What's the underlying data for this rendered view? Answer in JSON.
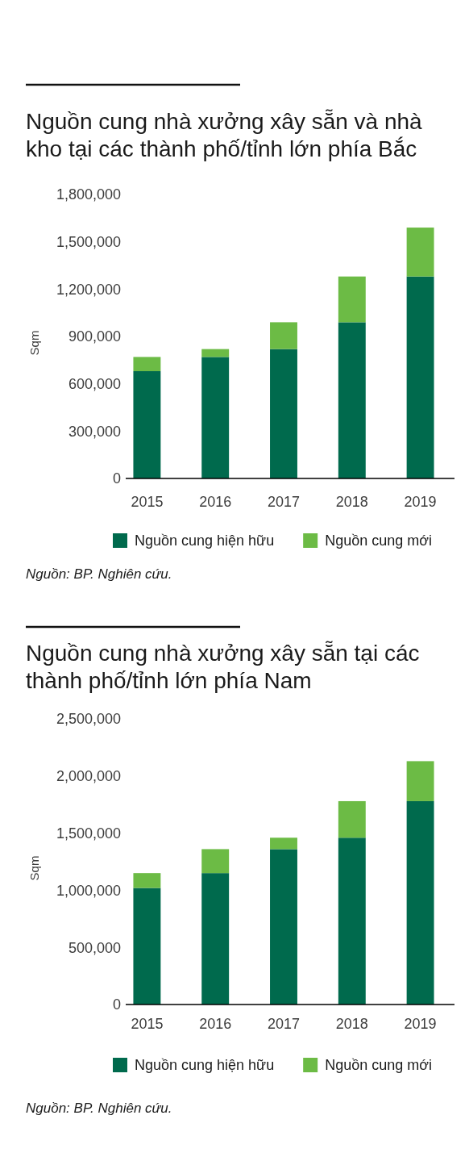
{
  "chart_data": [
    {
      "type": "bar",
      "title": "Nguồn cung nhà xưởng xây sẵn và nhà kho tại các thành phố/tỉnh lớn phía Bắc",
      "ylabel": "Sqm",
      "categories": [
        "2015",
        "2016",
        "2017",
        "2018",
        "2019"
      ],
      "stacked": true,
      "series": [
        {
          "name": "Nguồn cung hiện hữu",
          "color": "#006a4d",
          "values": [
            680000,
            770000,
            820000,
            990000,
            1280000
          ]
        },
        {
          "name": "Nguồn cung mới",
          "color": "#6cbb45",
          "values": [
            90000,
            50000,
            170000,
            290000,
            310000
          ]
        }
      ],
      "ylim": [
        0,
        1800000
      ],
      "yticks": [
        0,
        {
          "value": 300000,
          "label": "300,000"
        },
        {
          "value": 600000,
          "label": "600,000"
        },
        {
          "value": 900000,
          "label": "900,000"
        },
        {
          "value": 1200000,
          "label": "1,200,000"
        },
        {
          "value": 1500000,
          "label": "1,500,000"
        },
        {
          "value": 1800000,
          "label": "1,800,000"
        }
      ],
      "legend": "bottom",
      "annotations": [
        "Nguồn: BP. Nghiên cứu."
      ]
    },
    {
      "type": "bar",
      "title": "Nguồn cung nhà xưởng xây sẵn tại các thành phố/tỉnh lớn phía Nam",
      "ylabel": "Sqm",
      "categories": [
        "2015",
        "2016",
        "2017",
        "2018",
        "2019"
      ],
      "stacked": true,
      "series": [
        {
          "name": "Nguồn cung hiện hữu",
          "color": "#006a4d",
          "values": [
            1020000,
            1150000,
            1360000,
            1460000,
            1780000
          ]
        },
        {
          "name": "Nguồn cung mới",
          "color": "#6cbb45",
          "values": [
            130000,
            210000,
            100000,
            320000,
            350000
          ]
        }
      ],
      "ylim": [
        0,
        2500000
      ],
      "yticks": [
        0,
        {
          "value": 500000,
          "label": "500,000"
        },
        {
          "value": 1000000,
          "label": "1,000,000"
        },
        {
          "value": 1500000,
          "label": "1,500,000"
        },
        {
          "value": 2000000,
          "label": "2,000,000"
        },
        {
          "value": 2500000,
          "label": "2,500,000"
        }
      ],
      "legend": "bottom",
      "annotations": [
        "Nguồn: BP. Nghiên cứu."
      ]
    }
  ]
}
